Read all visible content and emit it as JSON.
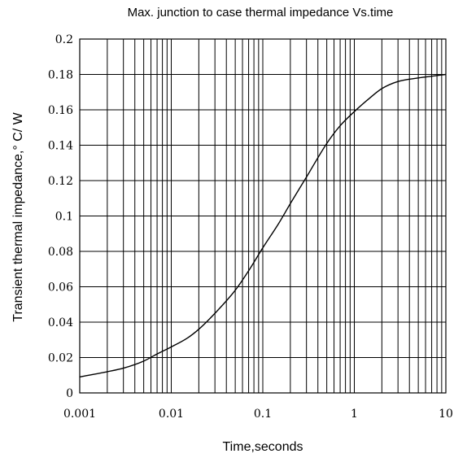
{
  "chart_data": {
    "type": "line",
    "title": "Max. junction to case thermal impedance Vs.time",
    "xlabel": "Time,seconds",
    "ylabel": "Transient thermal impedance,° C/ W",
    "xscale": "log",
    "xlim": [
      0.001,
      10
    ],
    "ylim": [
      0,
      0.2
    ],
    "grid": true,
    "x_tick_labels": [
      "0.001",
      "0.01",
      "0.1",
      "1",
      "10"
    ],
    "y_tick_labels": [
      "0",
      "0.02",
      "0.04",
      "0.06",
      "0.08",
      "0.1",
      "0.12",
      "0.14",
      "0.16",
      "0.18",
      "0.2"
    ],
    "series": [
      {
        "x": [
          0.001,
          0.002,
          0.003,
          0.005,
          0.007,
          0.01,
          0.015,
          0.02,
          0.03,
          0.05,
          0.07,
          0.1,
          0.15,
          0.2,
          0.3,
          0.5,
          0.7,
          1,
          1.5,
          2,
          3,
          5,
          7,
          10
        ],
        "values": [
          0.009,
          0.012,
          0.014,
          0.018,
          0.022,
          0.026,
          0.031,
          0.036,
          0.045,
          0.058,
          0.069,
          0.082,
          0.096,
          0.107,
          0.122,
          0.141,
          0.151,
          0.159,
          0.167,
          0.172,
          0.176,
          0.178,
          0.179,
          0.18
        ]
      }
    ]
  }
}
